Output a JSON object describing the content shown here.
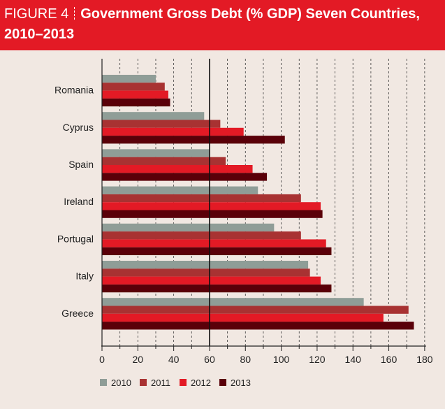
{
  "header": {
    "figure_label": "FIGURE 4",
    "title_line1": "Government Gross Debt (% GDP) Seven Countries,",
    "title_line2": "2010–2013"
  },
  "colors": {
    "header_bg": "#e31a25",
    "panel_bg": "#f1e8e2",
    "series": [
      "#8f9d97",
      "#a83232",
      "#e31a25",
      "#5a0009"
    ]
  },
  "chart_data": {
    "type": "bar",
    "orientation": "horizontal",
    "title": "Government Gross Debt (% GDP) Seven Countries, 2010–2013",
    "categories": [
      "Romania",
      "Cyprus",
      "Spain",
      "Ireland",
      "Portugal",
      "Italy",
      "Greece"
    ],
    "series": [
      {
        "name": "2010",
        "values": [
          30,
          57,
          60,
          87,
          96,
          115,
          146
        ]
      },
      {
        "name": "2011",
        "values": [
          35,
          66,
          69,
          111,
          111,
          116,
          171
        ]
      },
      {
        "name": "2012",
        "values": [
          37,
          79,
          84,
          122,
          125,
          122,
          157
        ]
      },
      {
        "name": "2013",
        "values": [
          38,
          102,
          92,
          123,
          128,
          128,
          174
        ]
      }
    ],
    "xlim": [
      0,
      180
    ],
    "xticks": [
      0,
      20,
      40,
      60,
      80,
      100,
      120,
      140,
      160,
      180
    ],
    "reference_line": 60,
    "grid": "vertical dashed",
    "legend_position": "bottom-left",
    "xlabel": "",
    "ylabel": ""
  }
}
